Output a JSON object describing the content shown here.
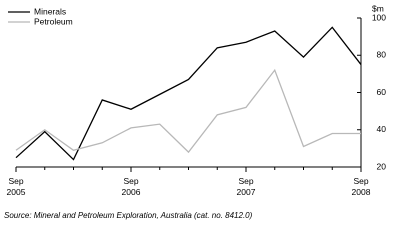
{
  "chart_data": {
    "type": "line",
    "categories": [
      "Sep 2005",
      null,
      null,
      null,
      "Sep 2006",
      null,
      null,
      null,
      "Sep 2007",
      null,
      null,
      null,
      "Sep 2008"
    ],
    "series": [
      {
        "name": "Minerals",
        "color": "#000000",
        "values": [
          25,
          39,
          24,
          56,
          51,
          59,
          67,
          84,
          87,
          93,
          79,
          95,
          75
        ]
      },
      {
        "name": "Petroleum",
        "color": "#b8b8b8",
        "values": [
          29,
          40,
          29,
          33,
          41,
          43,
          28,
          48,
          52,
          72,
          31,
          38,
          38
        ]
      }
    ],
    "y_label": "$m",
    "ylim": [
      20,
      100
    ],
    "yticks": [
      20,
      40,
      60,
      80,
      100
    ],
    "legend": "top-left",
    "source": "Source: Mineral and Petroleum Exploration, Australia (cat. no. 8412.0)"
  }
}
